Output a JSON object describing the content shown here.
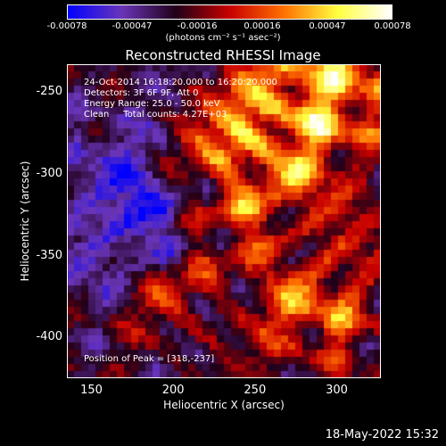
{
  "colorbar": {
    "ticks": [
      "-0.00078",
      "-0.00047",
      "-0.00016",
      "0.00016",
      "0.00047",
      "0.00078"
    ],
    "unit_label": "(photons cm⁻² s⁻¹ asec⁻²)",
    "colors": [
      "#0000ff",
      "#6a35b8",
      "#200018",
      "#c80000",
      "#ff7000",
      "#ffff40",
      "#ffffff"
    ]
  },
  "annotations": {
    "time_range": "24-Oct-2014 16:18:20.000 to 16:20:20.000",
    "detectors": "Detectors: 3F 6F 9F, Att 0",
    "energy": "Energy Range: 25.0 - 50.0 keV",
    "method": "Clean     Total counts: 4.27E+03",
    "peak": "Position of Peak = [318,-237]"
  },
  "timestamp": "18-May-2022 15:32",
  "chart_data": {
    "type": "heatmap",
    "title": "Reconstructed RHESSI Image",
    "xlabel": "Heliocentric X (arcsec)",
    "ylabel": "Heliocentric Y (arcsec)",
    "xlim": [
      135,
      327
    ],
    "ylim": [
      -425,
      -233
    ],
    "x_ticks": [
      "150",
      "200",
      "250",
      "300"
    ],
    "y_ticks": [
      "-250",
      "-300",
      "-350",
      "-400"
    ],
    "x_tick_values": [
      150,
      200,
      250,
      300
    ],
    "y_tick_values": [
      -250,
      -300,
      -350,
      -400
    ],
    "value_range": [
      -0.00078,
      0.00078
    ],
    "peak": [
      318,
      -237
    ]
  }
}
